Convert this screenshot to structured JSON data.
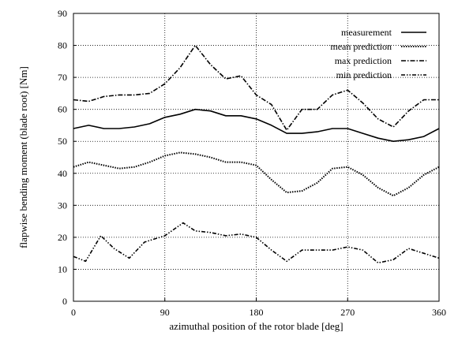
{
  "chart_data": {
    "type": "line",
    "xlabel": "azimuthal position of the rotor blade [deg]",
    "ylabel": "flapwise bending moment (blade root) [Nm]",
    "xlim": [
      0,
      360
    ],
    "ylim": [
      0,
      90
    ],
    "x_ticks": [
      "0",
      "90",
      "180",
      "270",
      "360"
    ],
    "y_ticks": [
      "0",
      "10",
      "20",
      "30",
      "40",
      "50",
      "60",
      "70",
      "80",
      "90"
    ],
    "grid": "dotted",
    "legend_position": "top-right",
    "series": [
      {
        "name": "measurement",
        "style": "solid",
        "x": [
          0,
          15,
          30,
          45,
          60,
          75,
          90,
          105,
          120,
          135,
          150,
          165,
          180,
          195,
          210,
          225,
          240,
          255,
          270,
          285,
          300,
          315,
          330,
          345,
          360
        ],
        "y": [
          54,
          55,
          54,
          54,
          54.5,
          55.5,
          57.5,
          58.5,
          60,
          59.5,
          58,
          58,
          57,
          55,
          52.5,
          52.5,
          53,
          54,
          54,
          52.5,
          51,
          50,
          50.5,
          51.5,
          54
        ]
      },
      {
        "name": "mean prediction",
        "style": "dotted",
        "x": [
          0,
          15,
          30,
          45,
          60,
          75,
          90,
          105,
          120,
          135,
          150,
          165,
          180,
          195,
          210,
          225,
          240,
          255,
          270,
          285,
          300,
          315,
          330,
          345,
          360
        ],
        "y": [
          42,
          43.5,
          42.5,
          41.5,
          42,
          43.5,
          45.5,
          46.5,
          46,
          45,
          43.5,
          43.5,
          42.5,
          38,
          34,
          34.5,
          37,
          41.5,
          42,
          39.5,
          35.5,
          33,
          35.5,
          39.5,
          42
        ]
      },
      {
        "name": "max  prediction",
        "style": "dashdot",
        "x": [
          0,
          15,
          30,
          45,
          60,
          75,
          90,
          105,
          120,
          135,
          150,
          165,
          180,
          195,
          210,
          225,
          240,
          255,
          270,
          285,
          300,
          315,
          330,
          345,
          360
        ],
        "y": [
          63,
          62.5,
          64,
          64.5,
          64.5,
          65,
          68,
          73,
          80,
          74,
          69.5,
          70.5,
          64.5,
          61.5,
          53.5,
          60,
          60,
          64.5,
          66,
          62,
          57,
          54.5,
          59.5,
          63,
          63
        ]
      },
      {
        "name": "min  prediction",
        "style": "dashdotdot",
        "x": [
          0,
          12,
          27,
          40,
          55,
          70,
          90,
          108,
          120,
          135,
          150,
          165,
          180,
          195,
          210,
          225,
          240,
          255,
          270,
          285,
          300,
          315,
          330,
          345,
          360
        ],
        "y": [
          14,
          12.5,
          20.5,
          16.5,
          13.5,
          18.5,
          20.5,
          24.5,
          22,
          21.5,
          20.5,
          21,
          20,
          16,
          12.5,
          16,
          16,
          16,
          17,
          16,
          12,
          13,
          16.5,
          15,
          13.5
        ]
      }
    ]
  }
}
